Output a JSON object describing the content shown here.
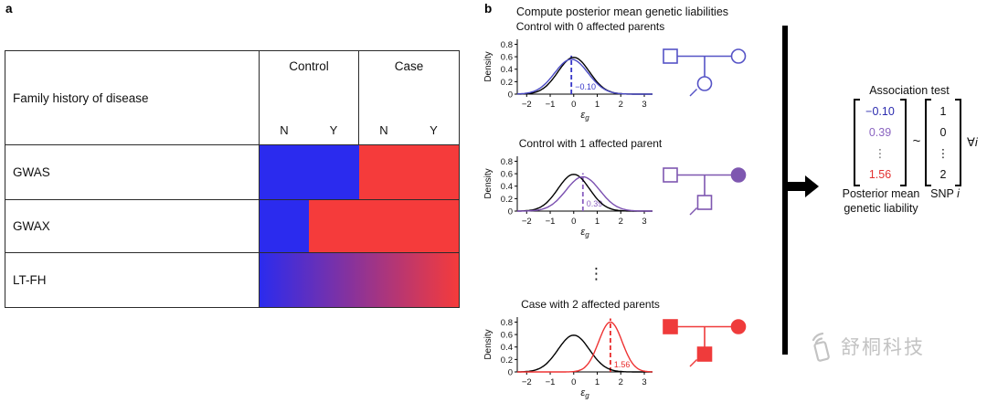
{
  "panel_a": {
    "label": "a",
    "table": {
      "row_header": "Family history of disease",
      "col_groups": [
        "Control",
        "Case"
      ],
      "sub_headers": [
        "N",
        "Y",
        "N",
        "Y"
      ],
      "rows": [
        {
          "label": "GWAS",
          "cells": [
            {
              "span": 2,
              "fill": "blue"
            },
            {
              "span": 2,
              "fill": "red"
            }
          ]
        },
        {
          "label": "GWAX",
          "cells": [
            {
              "span": 1,
              "fill": "blue"
            },
            {
              "span": 3,
              "fill": "red"
            }
          ]
        },
        {
          "label": "LT-FH",
          "cells": [
            {
              "span": 4,
              "fill": "gradient"
            }
          ]
        }
      ],
      "colors": {
        "blue": "#2b2bee",
        "red": "#f53b3b"
      }
    }
  },
  "panel_b": {
    "label": "b",
    "title": "Compute posterior mean genetic liabilities",
    "ellipsis": "⋮"
  },
  "chart_data": [
    {
      "type": "line",
      "title": "Control with 0 affected parents",
      "ylabel": "Density",
      "xlabel_symbol": "ε",
      "xlabel_sub": "g",
      "xlim": [
        -2.4,
        3.35
      ],
      "ylim": [
        0,
        0.88
      ],
      "xticks": [
        -2,
        -1,
        0,
        1,
        2,
        3
      ],
      "yticks": [
        0,
        0.2,
        0.4,
        0.6,
        0.8
      ],
      "series": [
        {
          "name": "population-distribution",
          "color": "#000000",
          "mean": 0,
          "sd": 0.67,
          "peak": 0.59
        },
        {
          "name": "posterior-distribution",
          "color": "#4a4ac4",
          "mean": -0.1,
          "sd": 0.71,
          "peak": 0.56
        }
      ],
      "vline": {
        "x": -0.1,
        "label": "−0.10",
        "color": "#3535c8"
      }
    },
    {
      "type": "line",
      "title": "Control with 1 affected parent",
      "ylabel": "Density",
      "xlabel_symbol": "ε",
      "xlabel_sub": "g",
      "xlim": [
        -2.4,
        3.35
      ],
      "ylim": [
        0,
        0.88
      ],
      "xticks": [
        -2,
        -1,
        0,
        1,
        2,
        3
      ],
      "yticks": [
        0,
        0.2,
        0.4,
        0.6,
        0.8
      ],
      "series": [
        {
          "name": "population-distribution",
          "color": "#000000",
          "mean": 0,
          "sd": 0.67,
          "peak": 0.59
        },
        {
          "name": "posterior-distribution",
          "color": "#7a4fb0",
          "mean": 0.39,
          "sd": 0.72,
          "peak": 0.55
        }
      ],
      "vline": {
        "x": 0.39,
        "label": "0.39",
        "color": "#8a5fc0"
      }
    },
    {
      "type": "line",
      "title": "Case with 2 affected parents",
      "ylabel": "Density",
      "xlabel_symbol": "ε",
      "xlabel_sub": "g",
      "xlim": [
        -2.4,
        3.35
      ],
      "ylim": [
        0,
        0.88
      ],
      "xticks": [
        -2,
        -1,
        0,
        1,
        2,
        3
      ],
      "yticks": [
        0,
        0.2,
        0.4,
        0.6,
        0.8
      ],
      "series": [
        {
          "name": "population-distribution",
          "color": "#000000",
          "mean": 0,
          "sd": 0.67,
          "peak": 0.59
        },
        {
          "name": "posterior-distribution",
          "color": "#ee3333",
          "mean": 1.56,
          "sd": 0.5,
          "peak": 0.8
        }
      ],
      "vline": {
        "x": 1.56,
        "label": "1.56",
        "color": "#e92d2d"
      }
    }
  ],
  "pedigrees": [
    {
      "color": "#5553c6",
      "father_filled": false,
      "mother_filled": false,
      "child_shape": "circle",
      "child_filled": false
    },
    {
      "color": "#7e57b0",
      "father_filled": false,
      "mother_filled": true,
      "child_shape": "square",
      "child_filled": false
    },
    {
      "color": "#ef3b3b",
      "father_filled": true,
      "mother_filled": true,
      "child_shape": "square",
      "child_filled": true
    }
  ],
  "association": {
    "title": "Association test",
    "left_vector": {
      "values": [
        {
          "text": "−0.10",
          "color": "#2a2aae"
        },
        {
          "text": "0.39",
          "color": "#8a63c0"
        },
        {
          "text": "⋮",
          "color": "#666666"
        },
        {
          "text": "1.56",
          "color": "#e23232"
        }
      ],
      "caption_line1": "Posterior mean",
      "caption_line2": "genetic liability"
    },
    "tilde": "~",
    "right_vector": {
      "values": [
        {
          "text": "1",
          "color": "#111111"
        },
        {
          "text": "0",
          "color": "#111111"
        },
        {
          "text": "⋮",
          "color": "#111111"
        },
        {
          "text": "2",
          "color": "#111111"
        }
      ],
      "caption_label": "SNP",
      "caption_index": "i"
    },
    "forall_symbol": "∀",
    "forall_index": "i"
  },
  "watermark": {
    "text": "舒桐科技"
  }
}
